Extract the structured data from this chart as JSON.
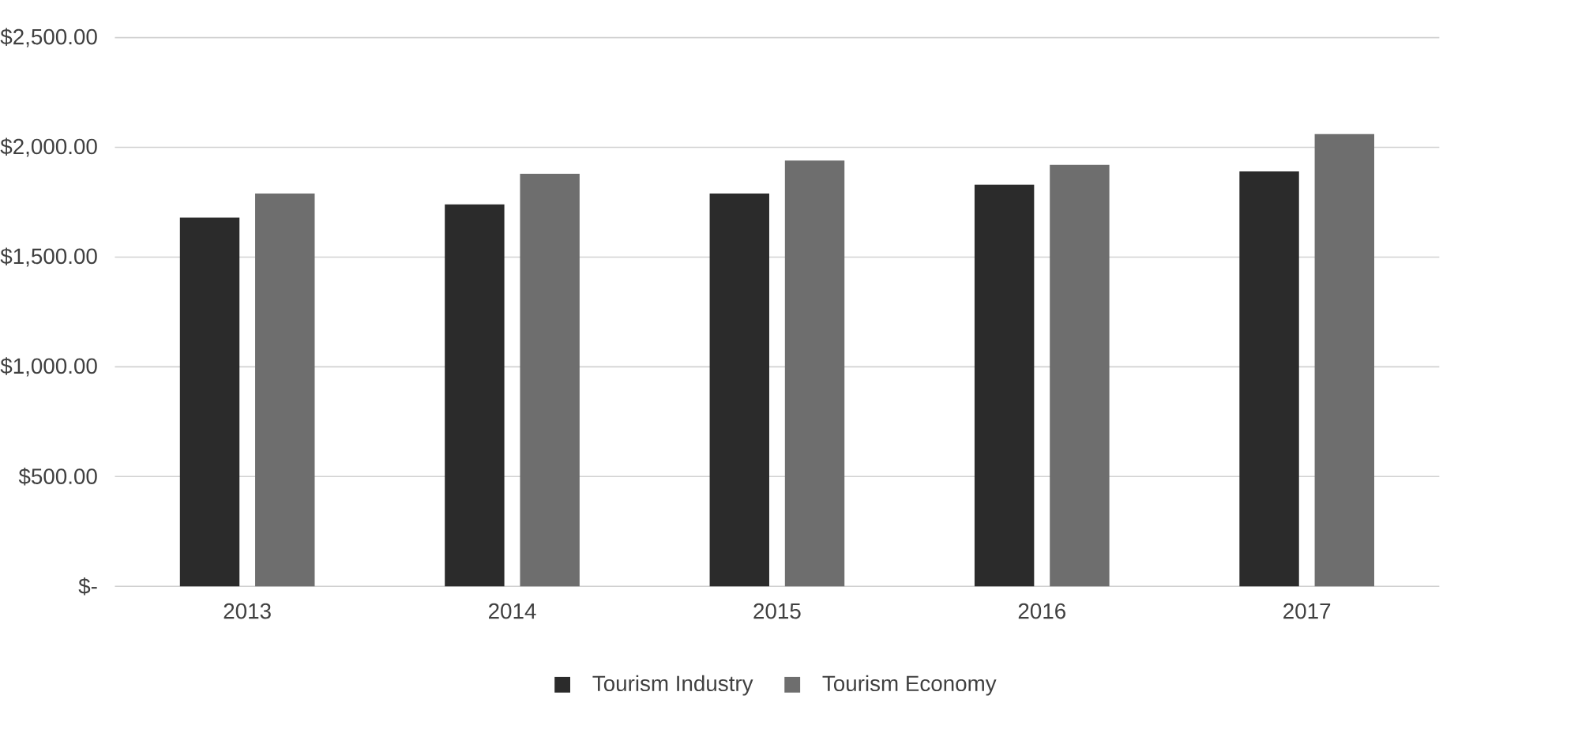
{
  "chart_data": {
    "type": "bar",
    "categories": [
      "2013",
      "2014",
      "2015",
      "2016",
      "2017"
    ],
    "series": [
      {
        "name": "Tourism Industry",
        "color": "#2b2b2b",
        "values": [
          1680,
          1740,
          1790,
          1830,
          1890
        ]
      },
      {
        "name": "Tourism Economy",
        "color": "#6e6e6e",
        "values": [
          1790,
          1880,
          1940,
          1920,
          2060
        ]
      }
    ],
    "ylim": [
      0,
      2500
    ],
    "yticks": [
      {
        "value": 0,
        "label": "$-"
      },
      {
        "value": 500,
        "label": "$500.00"
      },
      {
        "value": 1000,
        "label": "$1,000.00"
      },
      {
        "value": 1500,
        "label": "$1,500.00"
      },
      {
        "value": 2000,
        "label": "$2,000.00"
      },
      {
        "value": 2500,
        "label": "$2,500.00"
      }
    ],
    "grid": "y",
    "legend": "bottom"
  }
}
